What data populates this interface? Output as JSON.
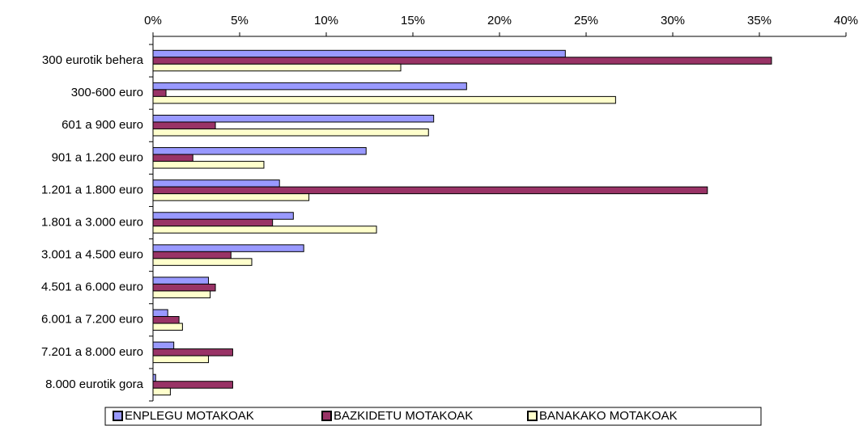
{
  "chart_data": {
    "type": "hbar",
    "categories": [
      "300 eurotik behera",
      "300-600 euro",
      "601 a 900 euro",
      "901 a 1.200 euro",
      "1.201 a 1.800 euro",
      "1.801 a 3.000 euro",
      "3.001 a 4.500 euro",
      "4.501 a 6.000 euro",
      "6.001 a 7.200 euro",
      "7.201 a  8.000 euro",
      "8.000 eurotik gora"
    ],
    "series": [
      {
        "name": "ENPLEGU MOTAKOAK",
        "color": "#9999ff",
        "values": [
          23.8,
          18.1,
          16.2,
          12.3,
          7.3,
          8.1,
          8.7,
          3.2,
          0.85,
          1.2,
          0.15
        ]
      },
      {
        "name": "BAZKIDETU MOTAKOAK",
        "color": "#993366",
        "values": [
          35.7,
          0.75,
          3.6,
          2.3,
          32.0,
          6.9,
          4.5,
          3.6,
          1.5,
          4.6,
          4.6
        ]
      },
      {
        "name": "BANAKAKO MOTAKOAK",
        "color": "#ffffcc",
        "values": [
          14.3,
          26.7,
          15.9,
          6.4,
          9.0,
          12.9,
          5.7,
          3.3,
          1.7,
          3.2,
          1.0
        ]
      }
    ],
    "xlim": [
      0,
      40
    ],
    "xticks": [
      {
        "value": 0,
        "label": "0%"
      },
      {
        "value": 5,
        "label": "5%"
      },
      {
        "value": 10,
        "label": "10%"
      },
      {
        "value": 15,
        "label": "15%"
      },
      {
        "value": 20,
        "label": "20%"
      },
      {
        "value": 25,
        "label": "25%"
      },
      {
        "value": 30,
        "label": "30%"
      },
      {
        "value": 35,
        "label": "35%"
      },
      {
        "value": 40,
        "label": "40%"
      }
    ],
    "legend": "bottom"
  }
}
